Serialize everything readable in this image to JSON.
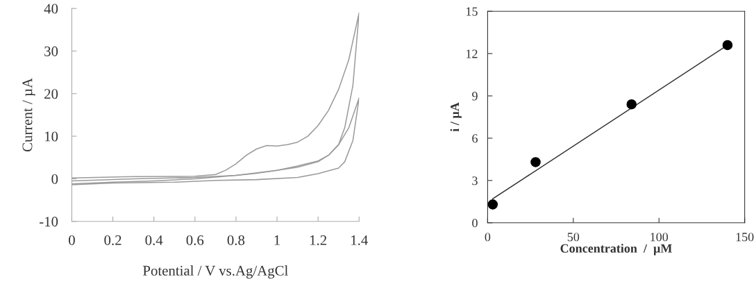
{
  "chart_data": [
    {
      "type": "line",
      "xlabel": "Potential / V vs.Ag/AgCl",
      "ylabel": "Current / µA",
      "xlim": [
        0,
        1.4
      ],
      "ylim": [
        -10,
        40
      ],
      "xticks": [
        0,
        0.2,
        0.4,
        0.6,
        0.8,
        1,
        1.2,
        1.4
      ],
      "yticks": [
        -10,
        0,
        10,
        20,
        30,
        40
      ],
      "grid": false,
      "marker": "none",
      "line_style": "solid",
      "series": [
        {
          "color": "#9a9a9a",
          "x": [
            0,
            0.3,
            0.6,
            0.7,
            0.75,
            0.8,
            0.85,
            0.9,
            0.95,
            1.0,
            1.05,
            1.1,
            1.15,
            1.2,
            1.25,
            1.3,
            1.35,
            1.4,
            1.37,
            1.33,
            1.3,
            1.25,
            1.2,
            1.1,
            1.0,
            0.9,
            0.8,
            0.6,
            0.4,
            0.2,
            0
          ],
          "values": [
            0.2,
            0.5,
            0.6,
            1.0,
            2,
            3.5,
            5.5,
            7,
            7.8,
            7.7,
            8,
            8.6,
            10,
            12.5,
            16,
            21,
            28,
            39,
            22,
            12,
            8,
            5.5,
            4.2,
            3,
            2,
            1.3,
            0.8,
            0,
            -0.5,
            -0.8,
            -1.2
          ]
        },
        {
          "color": "#9a9a9a",
          "x": [
            0,
            0.3,
            0.6,
            0.8,
            1.0,
            1.1,
            1.2,
            1.25,
            1.3,
            1.35,
            1.4,
            1.37,
            1.33,
            1.3,
            1.2,
            1.1,
            0.9,
            0.7,
            0.5,
            0.2,
            0
          ],
          "values": [
            -0.5,
            0,
            0.3,
            0.8,
            2,
            2.7,
            4,
            5.5,
            8,
            12,
            19,
            9,
            4,
            2.5,
            1.2,
            0.3,
            -0.2,
            -0.4,
            -0.8,
            -1.0,
            -1.4
          ]
        }
      ]
    },
    {
      "type": "scatter",
      "xlabel": "Concentration  /  µM",
      "ylabel": "i / µA",
      "xlim": [
        0,
        150
      ],
      "ylim": [
        0,
        15
      ],
      "xticks": [
        0,
        50,
        100,
        150
      ],
      "yticks": [
        0,
        3,
        6,
        9,
        12,
        15
      ],
      "grid": false,
      "series": [
        {
          "type": "scatter",
          "marker": "circle",
          "color": "#000000",
          "x": [
            3,
            28,
            84,
            140
          ],
          "values": [
            1.3,
            4.3,
            8.4,
            12.6
          ]
        },
        {
          "type": "line",
          "marker": "none",
          "color": "#333333",
          "x": [
            3,
            140
          ],
          "values": [
            1.7,
            12.6
          ]
        }
      ]
    }
  ]
}
